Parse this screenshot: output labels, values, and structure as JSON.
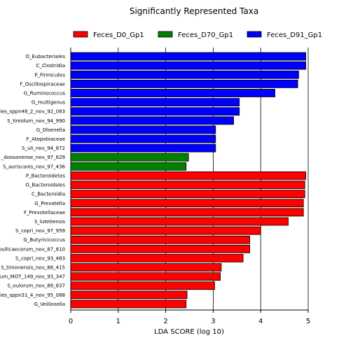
{
  "chart_data": {
    "type": "bar",
    "orientation": "horizontal",
    "title": "Significantly Represented Taxa",
    "xlabel": "LDA SCORE (log 10)",
    "ylabel": "",
    "xlim": [
      0,
      5
    ],
    "xticks": [
      0,
      1,
      2,
      3,
      4,
      5
    ],
    "grid": "vertical",
    "legend_position": "top",
    "groups": [
      {
        "name": "Feces_D0_Gp1",
        "color": "#ff0000"
      },
      {
        "name": "Feces_D70_Gp1",
        "color": "#008000"
      },
      {
        "name": "Feces_D91_Gp1",
        "color": "#0000ff"
      }
    ],
    "bars": [
      {
        "label": "O_Eubacteriales",
        "value": 4.95,
        "group": 2
      },
      {
        "label": "C_Clostridia",
        "value": 4.95,
        "group": 2
      },
      {
        "label": "P_Firmicutes",
        "value": 4.8,
        "group": 2
      },
      {
        "label": "F_Oscillospiraceae",
        "value": 4.78,
        "group": 2
      },
      {
        "label": "G_Ruminococcus",
        "value": 4.3,
        "group": 2
      },
      {
        "label": "G_multigenus",
        "value": 3.55,
        "group": 2
      },
      {
        "label": "ies_sppn48_2_nov_92_083",
        "value": 3.55,
        "group": 2
      },
      {
        "label": "S_timidum_nov_94_990",
        "value": 3.43,
        "group": 2
      },
      {
        "label": "G_Olsenella",
        "value": 3.05,
        "group": 2
      },
      {
        "label": "F_Atopobiaceae",
        "value": 3.05,
        "group": 2
      },
      {
        "label": "S_uli_nov_94_872",
        "value": 3.05,
        "group": 2
      },
      {
        "label": "_doosanense_nov_97_629",
        "value": 2.48,
        "group": 1
      },
      {
        "label": "S_auriscanis_nov_97_436",
        "value": 2.43,
        "group": 1
      },
      {
        "label": "P_Bacteroidetes",
        "value": 4.95,
        "group": 0
      },
      {
        "label": "O_Bacteroidales",
        "value": 4.93,
        "group": 0
      },
      {
        "label": "C_Bacteroidia",
        "value": 4.93,
        "group": 0
      },
      {
        "label": "G_Prevotella",
        "value": 4.9,
        "group": 0
      },
      {
        "label": "F_Prevotellaceae",
        "value": 4.9,
        "group": 0
      },
      {
        "label": "S_lutetiensis",
        "value": 4.58,
        "group": 0
      },
      {
        "label": "S_copri_nov_97_959",
        "value": 4.0,
        "group": 0
      },
      {
        "label": "G_Butyricicoccus",
        "value": 3.77,
        "group": 0
      },
      {
        "label": "pullicaecorum_nov_87_810",
        "value": 3.77,
        "group": 0
      },
      {
        "label": "S_copri_nov_93_483",
        "value": 3.63,
        "group": 0
      },
      {
        "label": "S_timonensis_nov_88_415",
        "value": 3.17,
        "group": 0
      },
      {
        "label": "um_MOT_149_nov_93_347",
        "value": 3.15,
        "group": 0
      },
      {
        "label": "S_oulorum_nov_89_837",
        "value": 3.03,
        "group": 0
      },
      {
        "label": "ies_sppn31_4_nov_95_088",
        "value": 2.45,
        "group": 0
      },
      {
        "label": "G_Veillonella",
        "value": 2.43,
        "group": 0
      }
    ]
  }
}
